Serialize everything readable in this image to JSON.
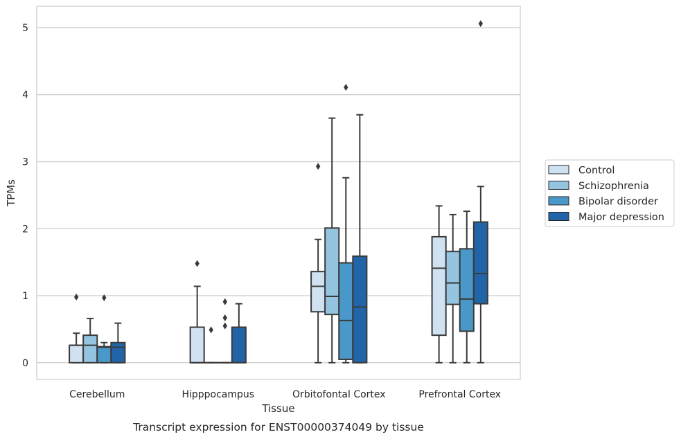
{
  "chart_data": {
    "type": "box",
    "xlabel": "Tissue",
    "ylabel": "TPMs",
    "caption": "Transcript expression for ENST00000374049 by tissue",
    "ylim": [
      -0.25,
      5.32
    ],
    "yticks": [
      0,
      1,
      2,
      3,
      4,
      5
    ],
    "ytick_labels": [
      "0",
      "1",
      "2",
      "3",
      "4",
      "5"
    ],
    "grid": "horizontal",
    "legend_position": "right",
    "categories": [
      "Cerebellum",
      "Hipppocampus",
      "Orbitofontal Cortex",
      "Prefrontal Cortex"
    ],
    "series": [
      {
        "name": "Control",
        "color": "#d0e1f2",
        "boxes": [
          {
            "whislo": 0.0,
            "q1": 0.0,
            "med": 0.26,
            "q3": 0.26,
            "whishi": 0.44,
            "fliers": [
              0.98
            ]
          },
          {
            "whislo": 0.0,
            "q1": 0.0,
            "med": 0.0,
            "q3": 0.53,
            "whishi": 1.14,
            "fliers": [
              1.48
            ]
          },
          {
            "whislo": 0.0,
            "q1": 0.76,
            "med": 1.14,
            "q3": 1.36,
            "whishi": 1.84,
            "fliers": [
              2.93
            ]
          },
          {
            "whislo": 0.0,
            "q1": 0.41,
            "med": 1.41,
            "q3": 1.88,
            "whishi": 2.34,
            "fliers": []
          }
        ]
      },
      {
        "name": "Schizophrenia",
        "color": "#94c4df",
        "boxes": [
          {
            "whislo": 0.0,
            "q1": 0.0,
            "med": 0.26,
            "q3": 0.41,
            "whishi": 0.66,
            "fliers": []
          },
          {
            "whislo": 0.0,
            "q1": 0.0,
            "med": 0.0,
            "q3": 0.0,
            "whishi": 0.0,
            "fliers": [
              0.49
            ]
          },
          {
            "whislo": 0.0,
            "q1": 0.72,
            "med": 0.99,
            "q3": 2.01,
            "whishi": 3.65,
            "fliers": []
          },
          {
            "whislo": 0.0,
            "q1": 0.87,
            "med": 1.19,
            "q3": 1.66,
            "whishi": 2.21,
            "fliers": []
          }
        ]
      },
      {
        "name": "Bipolar disorder",
        "color": "#4a98c9",
        "boxes": [
          {
            "whislo": 0.0,
            "q1": 0.0,
            "med": 0.23,
            "q3": 0.24,
            "whishi": 0.3,
            "fliers": [
              0.97
            ]
          },
          {
            "whislo": 0.0,
            "q1": 0.0,
            "med": 0.0,
            "q3": 0.0,
            "whishi": 0.0,
            "fliers": [
              0.55,
              0.67,
              0.91
            ]
          },
          {
            "whislo": 0.0,
            "q1": 0.05,
            "med": 0.63,
            "q3": 1.49,
            "whishi": 2.76,
            "fliers": [
              4.11
            ]
          },
          {
            "whislo": 0.0,
            "q1": 0.47,
            "med": 0.95,
            "q3": 1.7,
            "whishi": 2.26,
            "fliers": []
          }
        ]
      },
      {
        "name": "Major depression",
        "color": "#2264a8",
        "boxes": [
          {
            "whislo": 0.0,
            "q1": 0.0,
            "med": 0.23,
            "q3": 0.3,
            "whishi": 0.59,
            "fliers": []
          },
          {
            "whislo": 0.0,
            "q1": 0.0,
            "med": 0.0,
            "q3": 0.53,
            "whishi": 0.88,
            "fliers": []
          },
          {
            "whislo": 0.0,
            "q1": 0.0,
            "med": 0.83,
            "q3": 1.59,
            "whishi": 3.7,
            "fliers": []
          },
          {
            "whislo": 0.0,
            "q1": 0.88,
            "med": 1.33,
            "q3": 2.1,
            "whishi": 2.63,
            "fliers": [
              5.06
            ]
          }
        ]
      }
    ]
  }
}
